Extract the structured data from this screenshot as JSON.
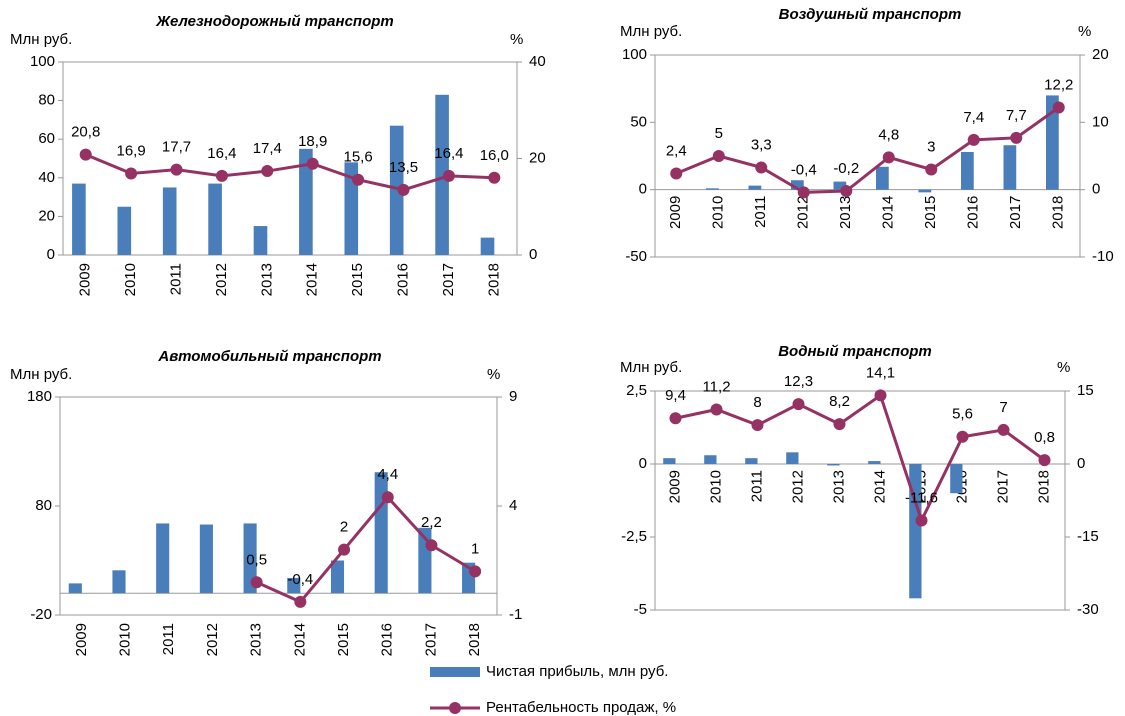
{
  "chart_data": [
    {
      "type": "combo",
      "title": "Железнодорожный транспорт",
      "y_label": "Млн руб.",
      "y2_label": "%",
      "categories": [
        "2009",
        "2010",
        "2011",
        "2012",
        "2013",
        "2014",
        "2015",
        "2016",
        "2017",
        "2018"
      ],
      "series": [
        {
          "name": "Чистая прибыль, млн руб.",
          "color": "#4a7ebb",
          "values": [
            37,
            25,
            35,
            37,
            15,
            55,
            48,
            67,
            83,
            9
          ]
        },
        {
          "name": "Рентабельность продаж, %",
          "color": "#953163",
          "axis": "y2",
          "values": [
            20.8,
            16.9,
            17.7,
            16.4,
            17.4,
            18.9,
            15.6,
            13.5,
            16.4,
            16.0
          ],
          "value_labels": [
            "20,8",
            "16,9",
            "17,7",
            "16,4",
            "17,4",
            "18,9",
            "15,6",
            "13,5",
            "16,4",
            "16,0"
          ]
        }
      ],
      "ylim": [
        0,
        100
      ],
      "yticks": [
        0,
        20,
        40,
        60,
        80,
        100
      ],
      "y2lim": [
        0,
        40
      ],
      "y2ticks": [
        0,
        20,
        40
      ]
    },
    {
      "type": "combo",
      "title": "Воздушный транспорт",
      "y_label": "Млн руб.",
      "y2_label": "%",
      "categories": [
        "2009",
        "2010",
        "2011",
        "2012",
        "2013",
        "2014",
        "2015",
        "2016",
        "2017",
        "2018"
      ],
      "series": [
        {
          "color": "#4a7ebb",
          "values": [
            0,
            1,
            3,
            7,
            6,
            17,
            -2,
            28,
            33,
            70
          ]
        },
        {
          "color": "#953163",
          "axis": "y2",
          "values": [
            2.4,
            5,
            3.3,
            -0.4,
            -0.2,
            4.8,
            3,
            7.4,
            7.7,
            12.2
          ],
          "value_labels": [
            "2,4",
            "5",
            "3,3",
            "-0,4",
            "-0,2",
            "4,8",
            "3",
            "7,4",
            "7,7",
            "12,2"
          ]
        }
      ],
      "ylim": [
        -50,
        100
      ],
      "yticks": [
        -50,
        0,
        50,
        100
      ],
      "y2lim": [
        -10,
        20
      ],
      "y2ticks": [
        -10,
        0,
        10,
        20
      ]
    },
    {
      "type": "combo",
      "title": "Автомобильный транспорт",
      "y_label": "Млн руб.",
      "y2_label": "%",
      "categories": [
        "2009",
        "2010",
        "2011",
        "2012",
        "2013",
        "2014",
        "2015",
        "2016",
        "2017",
        "2018"
      ],
      "series": [
        {
          "color": "#4a7ebb",
          "values": [
            9,
            21,
            64,
            63,
            64,
            14,
            30,
            111,
            60,
            28
          ]
        },
        {
          "color": "#953163",
          "axis": "y2",
          "values": [
            null,
            null,
            null,
            null,
            0.5,
            -0.4,
            2,
            4.4,
            2.2,
            1
          ],
          "value_labels": [
            null,
            null,
            null,
            null,
            "0,5",
            "-0,4",
            "2",
            "4,4",
            "2,2",
            "1"
          ]
        }
      ],
      "ylim": [
        -20,
        180
      ],
      "yticks": [
        -20,
        80,
        180
      ],
      "y2lim": [
        -1,
        9
      ],
      "y2ticks": [
        -1,
        4,
        9
      ]
    },
    {
      "type": "combo",
      "title": "Водный транспорт",
      "y_label": "Млн руб.",
      "y2_label": "%",
      "categories": [
        "2009",
        "2010",
        "2011",
        "2012",
        "2013",
        "2014",
        "2015",
        "2016",
        "2017",
        "2018"
      ],
      "series": [
        {
          "color": "#4a7ebb",
          "values": [
            0.2,
            0.3,
            0.2,
            0.4,
            -0.05,
            0.1,
            -4.6,
            -1.0,
            0,
            0
          ]
        },
        {
          "color": "#953163",
          "axis": "y2",
          "values": [
            9.4,
            11.2,
            8,
            12.3,
            8.2,
            14.1,
            -11.6,
            5.6,
            7,
            0.8
          ],
          "value_labels": [
            "9,4",
            "11,2",
            "8",
            "12,3",
            "8,2",
            "14,1",
            "-11,6",
            "5,6",
            "7",
            "0,8"
          ]
        }
      ],
      "ylim": [
        -5,
        2.5
      ],
      "yticks": [
        {
          "value": -5,
          "label": "-5"
        },
        {
          "value": -2.5,
          "label": "-2,5"
        },
        0,
        {
          "value": 2.5,
          "label": "2,5"
        }
      ],
      "y2lim": [
        -30,
        15
      ],
      "y2ticks": [
        -30,
        -15,
        0,
        15
      ]
    }
  ]
}
